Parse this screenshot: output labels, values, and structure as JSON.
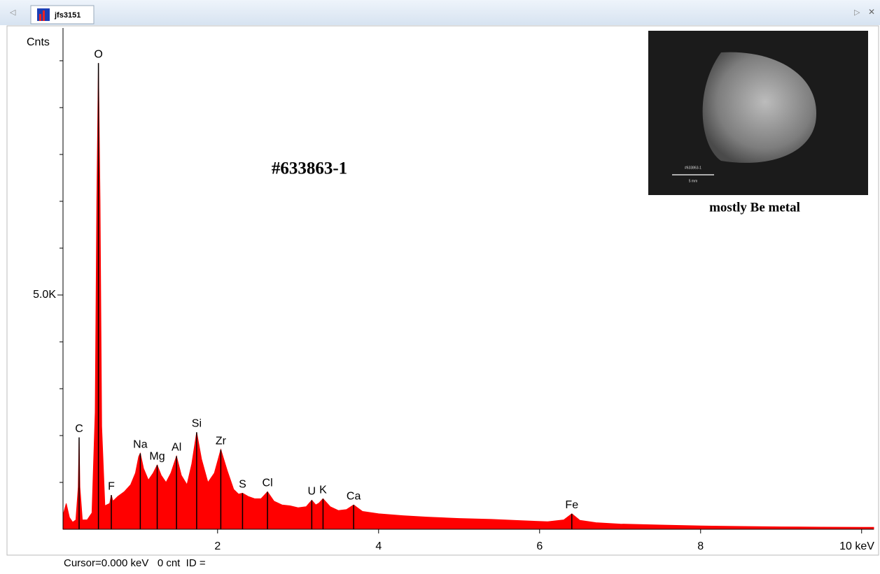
{
  "tab": "jfs3151",
  "status": "Cursor=0.000 keV   0 cnt  ID =",
  "chart_data": {
    "type": "area",
    "title": "#633863-1",
    "y_label": "Cnts",
    "color": "#ff0000",
    "x": [
      0.08,
      0.12,
      0.16,
      0.2,
      0.24,
      0.27,
      0.28,
      0.29,
      0.32,
      0.38,
      0.44,
      0.48,
      0.5,
      0.52,
      0.54,
      0.56,
      0.6,
      0.66,
      0.68,
      0.7,
      0.76,
      0.84,
      0.92,
      0.98,
      1.02,
      1.04,
      1.08,
      1.14,
      1.2,
      1.25,
      1.3,
      1.36,
      1.42,
      1.49,
      1.55,
      1.62,
      1.68,
      1.74,
      1.8,
      1.88,
      1.96,
      2.04,
      2.12,
      2.2,
      2.26,
      2.31,
      2.38,
      2.46,
      2.54,
      2.62,
      2.7,
      2.8,
      2.9,
      3.0,
      3.1,
      3.17,
      3.22,
      3.26,
      3.31,
      3.4,
      3.5,
      3.6,
      3.69,
      3.8,
      4.0,
      4.3,
      4.6,
      5.0,
      5.4,
      5.8,
      6.1,
      6.3,
      6.4,
      6.5,
      6.7,
      7.0,
      7.5,
      8.0,
      8.5,
      9.0,
      9.5,
      10.0,
      10.15
    ],
    "values": [
      300,
      550,
      250,
      150,
      200,
      900,
      1960,
      900,
      200,
      200,
      350,
      2500,
      7000,
      9950,
      7000,
      2200,
      500,
      550,
      730,
      600,
      700,
      800,
      950,
      1200,
      1550,
      1620,
      1300,
      1050,
      1200,
      1370,
      1150,
      1000,
      1200,
      1560,
      1150,
      950,
      1400,
      2070,
      1500,
      1000,
      1200,
      1700,
      1250,
      850,
      750,
      770,
      700,
      650,
      650,
      800,
      600,
      520,
      500,
      460,
      480,
      620,
      520,
      560,
      650,
      480,
      400,
      420,
      520,
      380,
      330,
      290,
      260,
      230,
      210,
      180,
      160,
      200,
      330,
      190,
      140,
      110,
      90,
      70,
      60,
      50,
      45,
      40,
      40
    ],
    "xlim": [
      0.08,
      10.15
    ],
    "xticks": [
      2,
      4,
      6,
      8,
      {
        "value": 10,
        "label": "10 keV"
      }
    ],
    "ylim": [
      0,
      10700
    ],
    "yticks": [
      {
        "value": 5000,
        "label": "5.0K"
      }
    ],
    "yminorticks": [
      1000,
      2000,
      3000,
      4000,
      6000,
      7000,
      8000,
      9000,
      10000
    ],
    "annotations": [
      {
        "text": "C",
        "x": 0.28
      },
      {
        "text": "O",
        "x": 0.52
      },
      {
        "text": "F",
        "x": 0.68
      },
      {
        "text": "Na",
        "x": 1.04
      },
      {
        "text": "Mg",
        "x": 1.25
      },
      {
        "text": "Al",
        "x": 1.49
      },
      {
        "text": "Si",
        "x": 1.74
      },
      {
        "text": "Zr",
        "x": 2.04
      },
      {
        "text": "S",
        "x": 2.31
      },
      {
        "text": "Cl",
        "x": 2.62
      },
      {
        "text": "U",
        "x": 3.17
      },
      {
        "text": "K",
        "x": 3.31
      },
      {
        "text": "Ca",
        "x": 3.69
      },
      {
        "text": "Fe",
        "x": 6.4
      }
    ],
    "inset": {
      "caption": "mostly Be metal",
      "sample_label": "#633863-1",
      "scale_label": "5 mm"
    }
  }
}
